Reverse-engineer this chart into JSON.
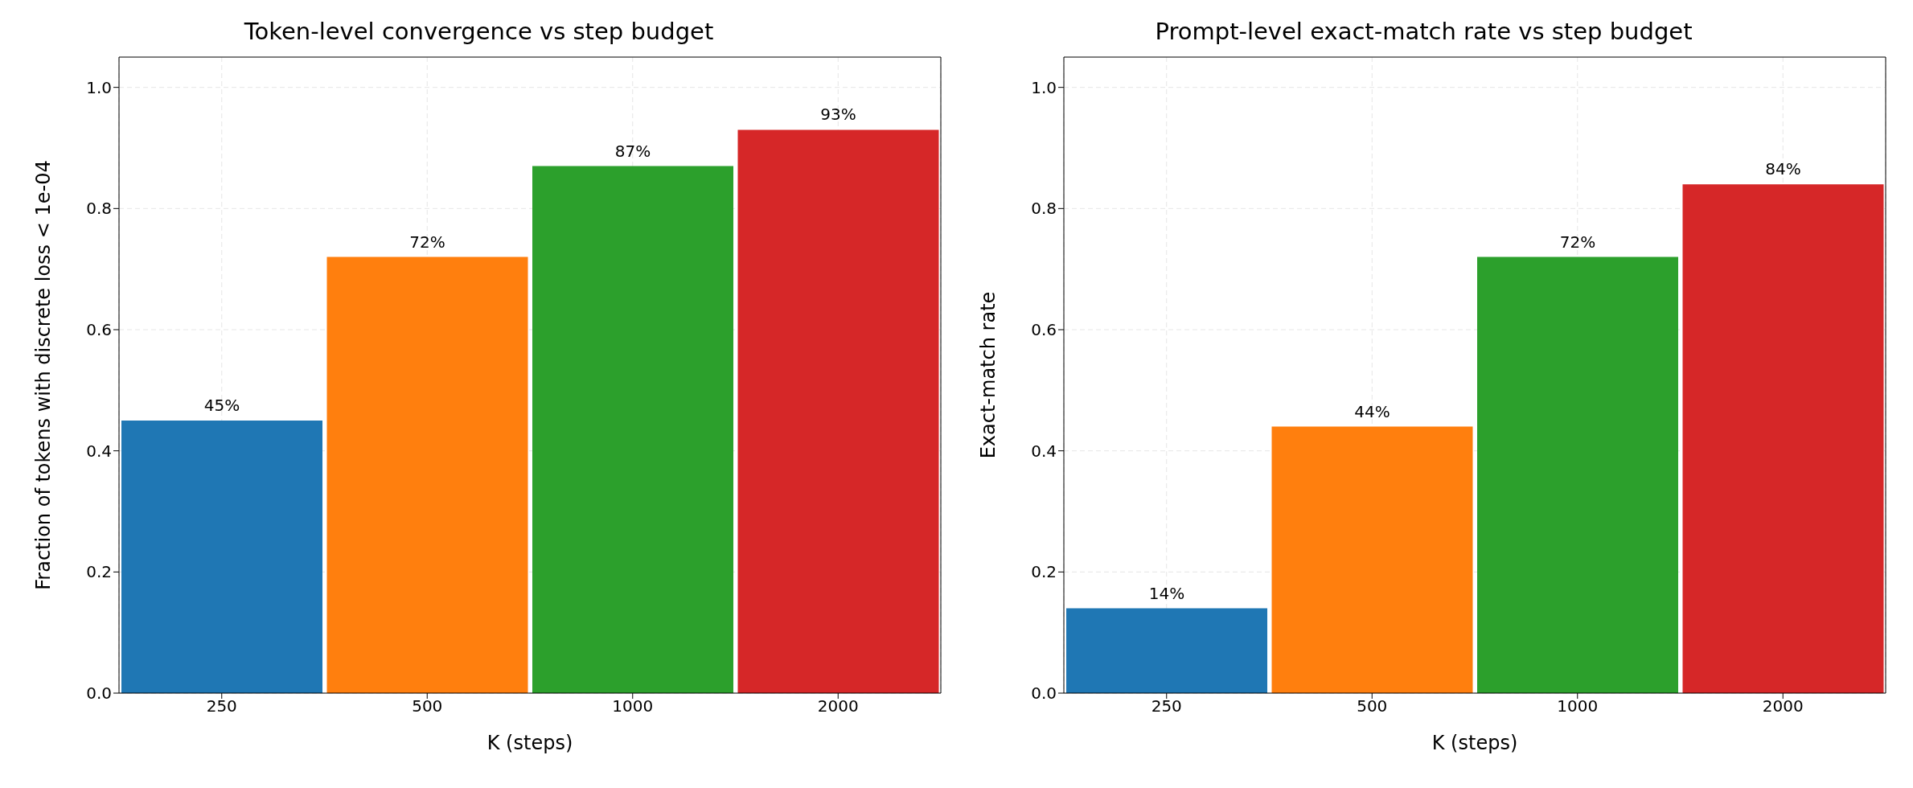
{
  "chart_data": [
    {
      "type": "bar",
      "title": "Token-level convergence vs step budget",
      "xlabel": "K (steps)",
      "ylabel": "Fraction of tokens with discrete loss < 1e-04",
      "categories": [
        "250",
        "500",
        "1000",
        "2000"
      ],
      "values": [
        0.45,
        0.72,
        0.87,
        0.93
      ],
      "colors": [
        "#1f77b4",
        "#ff7f0e",
        "#2ca02c",
        "#d62728"
      ],
      "value_labels": [
        "45%",
        "72%",
        "87%",
        "93%"
      ],
      "ylim": [
        0,
        1.05
      ],
      "yticks": [
        {
          "value": 0,
          "label": "0.0"
        },
        {
          "value": 0.2,
          "label": "0.2"
        },
        {
          "value": 0.4,
          "label": "0.4"
        },
        {
          "value": 0.6,
          "label": "0.6"
        },
        {
          "value": 0.8,
          "label": "0.8"
        },
        {
          "value": 1,
          "label": "1.0"
        }
      ],
      "grid": true,
      "legend": false
    },
    {
      "type": "bar",
      "title": "Prompt-level exact-match rate vs step budget",
      "xlabel": "K (steps)",
      "ylabel": "Exact-match rate",
      "categories": [
        "250",
        "500",
        "1000",
        "2000"
      ],
      "values": [
        0.14,
        0.44,
        0.72,
        0.84
      ],
      "colors": [
        "#1f77b4",
        "#ff7f0e",
        "#2ca02c",
        "#d62728"
      ],
      "value_labels": [
        "14%",
        "44%",
        "72%",
        "84%"
      ],
      "ylim": [
        0,
        1.05
      ],
      "yticks": [
        {
          "value": 0,
          "label": "0.0"
        },
        {
          "value": 0.2,
          "label": "0.2"
        },
        {
          "value": 0.4,
          "label": "0.4"
        },
        {
          "value": 0.6,
          "label": "0.6"
        },
        {
          "value": 0.8,
          "label": "0.8"
        },
        {
          "value": 1,
          "label": "1.0"
        }
      ],
      "grid": true,
      "legend": false
    }
  ]
}
